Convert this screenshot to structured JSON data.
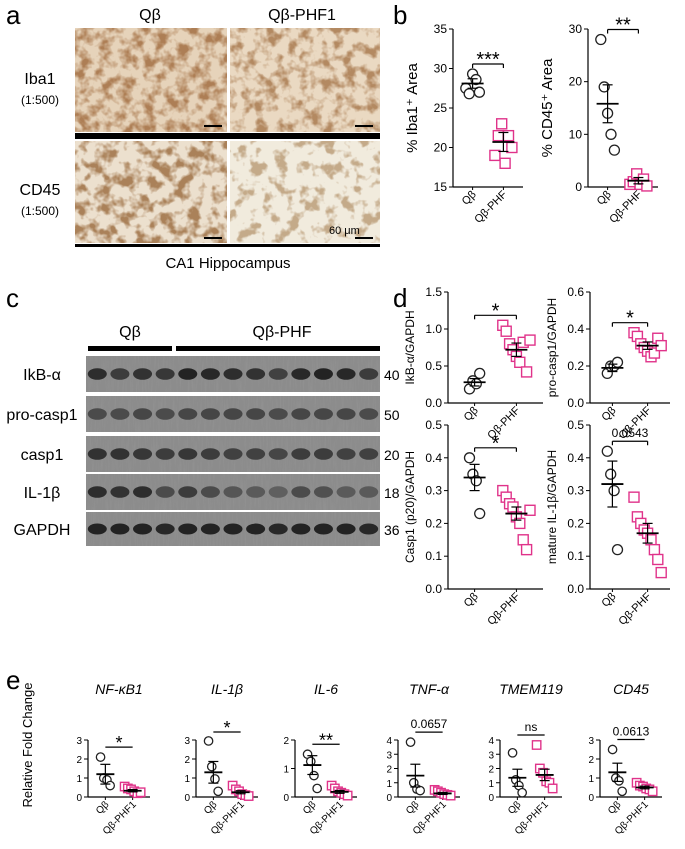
{
  "panel_a": {
    "letter": "a",
    "columns": [
      "Qβ",
      "Qβ-PHF1"
    ],
    "rows": [
      {
        "label": "Iba1",
        "dilution": "(1:500)"
      },
      {
        "label": "CD45",
        "dilution": "(1:500)"
      }
    ],
    "scale_bar": "60 μm",
    "region": "CA1 Hippocampus"
  },
  "panel_b": {
    "letter": "b"
  },
  "panel_c": {
    "letter": "c",
    "groups": [
      "Qβ",
      "Qβ-PHF"
    ],
    "bands": [
      {
        "name": "IkB-α",
        "kda": "40"
      },
      {
        "name": "pro-casp1",
        "kda": "50"
      },
      {
        "name": "casp1",
        "kda": "20"
      },
      {
        "name": "IL-1β",
        "kda": "18"
      },
      {
        "name": "GAPDH",
        "kda": "36"
      }
    ]
  },
  "panel_d": {
    "letter": "d"
  },
  "panel_e": {
    "letter": "e",
    "shared_ylabel": "Relative Fold Change"
  },
  "colors": {
    "control": "#222222",
    "treated": "#e0338a",
    "stain_dark": "#6a3518",
    "stain_bg": "#e9d9c4"
  },
  "chart_data": [
    {
      "id": "b1",
      "type": "scatter",
      "ylabel": "% Iba1⁺ Area",
      "categories": [
        "Qβ",
        "Qβ-PHF"
      ],
      "ylim": [
        15,
        35
      ],
      "yticks": [
        15,
        20,
        25,
        30,
        35
      ],
      "sig": "***",
      "series": [
        {
          "values": [
            27.5,
            26.8,
            29.3,
            28.6,
            27.0
          ]
        },
        {
          "values": [
            19.0,
            21.5,
            23.0,
            18.0,
            21.5,
            20.0
          ]
        }
      ],
      "mean": [
        28.1,
        20.7
      ],
      "sem": [
        0.6,
        1.2
      ]
    },
    {
      "id": "b2",
      "type": "scatter",
      "ylabel": "% CD45⁺ Area",
      "categories": [
        "Qβ",
        "Qβ-PHF"
      ],
      "ylim": [
        0,
        30
      ],
      "yticks": [
        0,
        10,
        20,
        30
      ],
      "sig": "**",
      "series": [
        {
          "values": [
            28,
            19,
            14,
            10,
            7
          ]
        },
        {
          "values": [
            0.5,
            1.0,
            2.5,
            0.5,
            1.5,
            0.2
          ]
        }
      ],
      "mean": [
        15.8,
        1.2
      ],
      "sem": [
        3.6,
        0.6
      ]
    },
    {
      "id": "d1",
      "type": "scatter",
      "ylabel": "IkB-α/GAPDH",
      "categories": [
        "Qβ",
        "Qβ-PHF"
      ],
      "ylim": [
        0,
        1.5
      ],
      "yticks": [
        0.0,
        0.5,
        1.0,
        1.5
      ],
      "sig": "*",
      "series": [
        {
          "values": [
            0.19,
            0.3,
            0.26,
            0.4
          ]
        },
        {
          "values": [
            1.05,
            0.97,
            0.8,
            0.72,
            0.63,
            0.55,
            0.82,
            0.42,
            0.85
          ]
        }
      ],
      "mean": [
        0.28,
        0.72
      ],
      "sem": [
        0.05,
        0.09
      ]
    },
    {
      "id": "d2",
      "type": "scatter",
      "ylabel": "pro-casp1/GAPDH",
      "categories": [
        "Qβ",
        "Qβ-PHF"
      ],
      "ylim": [
        0,
        0.6
      ],
      "yticks": [
        0.0,
        0.2,
        0.4,
        0.6
      ],
      "sig": "*",
      "series": [
        {
          "values": [
            0.16,
            0.2,
            0.2,
            0.22
          ]
        },
        {
          "values": [
            0.38,
            0.36,
            0.32,
            0.3,
            0.28,
            0.25,
            0.27,
            0.35,
            0.31
          ]
        }
      ],
      "mean": [
        0.19,
        0.31
      ],
      "sem": [
        0.02,
        0.02
      ]
    },
    {
      "id": "d3",
      "type": "scatter",
      "ylabel": "Casp1 (p20)/GAPDH",
      "categories": [
        "Qβ",
        "Qβ-PHF"
      ],
      "ylim": [
        0,
        0.5
      ],
      "yticks": [
        0.0,
        0.1,
        0.2,
        0.3,
        0.4,
        0.5
      ],
      "sig": "*",
      "series": [
        {
          "values": [
            0.4,
            0.35,
            0.33,
            0.23
          ]
        },
        {
          "values": [
            0.3,
            0.28,
            0.26,
            0.25,
            0.22,
            0.2,
            0.15,
            0.12,
            0.24
          ]
        }
      ],
      "mean": [
        0.34,
        0.23
      ],
      "sem": [
        0.04,
        0.02
      ]
    },
    {
      "id": "d4",
      "type": "scatter",
      "ylabel": "mature IL-1β/GAPDH",
      "categories": [
        "Qβ",
        "Qβ-PHF"
      ],
      "ylim": [
        0,
        0.5
      ],
      "yticks": [
        0.0,
        0.1,
        0.2,
        0.3,
        0.4,
        0.5
      ],
      "sig": "0.0543",
      "series": [
        {
          "values": [
            0.42,
            0.35,
            0.3,
            0.12
          ]
        },
        {
          "values": [
            0.28,
            0.22,
            0.2,
            0.18,
            0.17,
            0.15,
            0.12,
            0.09,
            0.05
          ]
        }
      ],
      "mean": [
        0.32,
        0.17
      ],
      "sem": [
        0.07,
        0.03
      ]
    },
    {
      "id": "e1",
      "type": "scatter",
      "title": "NF-κB1",
      "categories": [
        "Qβ",
        "Qβ-PHF1"
      ],
      "ylim": [
        0,
        3
      ],
      "yticks": [
        0,
        1,
        2,
        3
      ],
      "sig": "*",
      "series": [
        {
          "values": [
            2.1,
            1.0,
            0.9,
            0.6
          ]
        },
        {
          "values": [
            0.55,
            0.45,
            0.4,
            0.3,
            0.2,
            0.25
          ]
        }
      ],
      "mean": [
        1.2,
        0.33
      ],
      "sem": [
        0.52,
        0.06
      ]
    },
    {
      "id": "e2",
      "type": "scatter",
      "title": "IL-1β",
      "categories": [
        "Qβ",
        "Qβ-PHF1"
      ],
      "ylim": [
        0,
        3
      ],
      "yticks": [
        0,
        1,
        2,
        3
      ],
      "sig": "*",
      "series": [
        {
          "values": [
            2.95,
            1.6,
            0.95,
            0.3
          ]
        },
        {
          "values": [
            0.6,
            0.4,
            0.3,
            0.15,
            0.1,
            0.05
          ]
        }
      ],
      "mean": [
        1.3,
        0.25
      ],
      "sem": [
        0.57,
        0.08
      ]
    },
    {
      "id": "e3",
      "type": "scatter",
      "title": "IL-6",
      "categories": [
        "Qβ",
        "Qβ-PHF1"
      ],
      "ylim": [
        0,
        2
      ],
      "yticks": [
        0,
        1,
        2
      ],
      "sig": "**",
      "series": [
        {
          "values": [
            1.5,
            1.25,
            0.75,
            0.3
          ]
        },
        {
          "values": [
            0.4,
            0.3,
            0.2,
            0.15,
            0.1,
            0.05
          ]
        }
      ],
      "mean": [
        1.12,
        0.18
      ],
      "sem": [
        0.33,
        0.05
      ]
    },
    {
      "id": "e4",
      "type": "scatter",
      "title": "TNF-α",
      "categories": [
        "Qβ",
        "Qβ-PHF1"
      ],
      "ylim": [
        0,
        4
      ],
      "yticks": [
        0,
        1,
        2,
        3,
        4
      ],
      "sig": "0.0657",
      "series": [
        {
          "values": [
            3.85,
            1.0,
            0.55,
            0.45
          ]
        },
        {
          "values": [
            0.5,
            0.4,
            0.3,
            0.2,
            0.15,
            0.1
          ]
        }
      ],
      "mean": [
        1.5,
        0.25
      ],
      "sem": [
        0.8,
        0.07
      ]
    },
    {
      "id": "e5",
      "type": "scatter",
      "title": "TMEM119",
      "categories": [
        "Qβ",
        "Qβ-PHF1"
      ],
      "ylim": [
        0,
        4
      ],
      "yticks": [
        0,
        1,
        2,
        3,
        4
      ],
      "sig": "ns",
      "series": [
        {
          "values": [
            3.1,
            1.2,
            0.8,
            0.3
          ]
        },
        {
          "values": [
            3.65,
            2.0,
            1.7,
            1.1,
            1.0,
            0.6
          ]
        }
      ],
      "mean": [
        1.35,
        1.55
      ],
      "sem": [
        0.6,
        0.4
      ]
    },
    {
      "id": "e6",
      "type": "scatter",
      "title": "CD45",
      "categories": [
        "Qβ",
        "Qβ-PHF1"
      ],
      "ylim": [
        0,
        3
      ],
      "yticks": [
        0,
        1,
        2,
        3
      ],
      "sig": "0.0613",
      "series": [
        {
          "values": [
            2.5,
            1.0,
            0.85,
            0.3
          ]
        },
        {
          "values": [
            0.75,
            0.6,
            0.55,
            0.45,
            0.4,
            0.3
          ]
        }
      ],
      "mean": [
        1.3,
        0.5
      ],
      "sem": [
        0.48,
        0.07
      ]
    }
  ]
}
